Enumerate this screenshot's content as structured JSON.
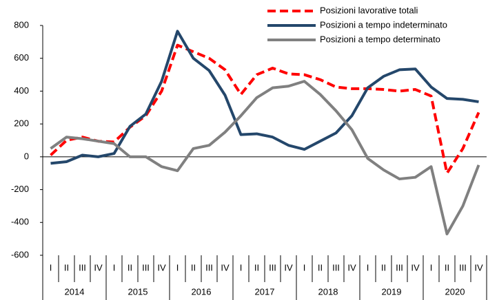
{
  "chart_data": {
    "type": "line",
    "categories": [
      "I",
      "II",
      "III",
      "IV",
      "I",
      "II",
      "III",
      "IV",
      "I",
      "II",
      "III",
      "IV",
      "I",
      "II",
      "III",
      "IV",
      "I",
      "II",
      "III",
      "IV",
      "I",
      "II",
      "III",
      "IV",
      "I",
      "II",
      "III",
      "IV"
    ],
    "years": [
      "2014",
      "2015",
      "2016",
      "2017",
      "2018",
      "2019",
      "2020"
    ],
    "series": [
      {
        "name": "Posizioni lavorative totali",
        "color": "#ff0000",
        "dashed": true,
        "values": [
          10,
          100,
          120,
          95,
          90,
          180,
          250,
          400,
          680,
          640,
          600,
          530,
          380,
          500,
          540,
          505,
          500,
          470,
          425,
          415,
          415,
          410,
          400,
          410,
          370,
          -100,
          50,
          270
        ]
      },
      {
        "name": "Posizioni a tempo indeterminato",
        "color": "#24476b",
        "dashed": false,
        "values": [
          -40,
          -30,
          10,
          0,
          20,
          185,
          260,
          460,
          765,
          600,
          525,
          375,
          135,
          140,
          120,
          70,
          45,
          95,
          145,
          250,
          420,
          490,
          530,
          535,
          425,
          355,
          350,
          335
        ]
      },
      {
        "name": "Posizioni a  tempo determinato",
        "color": "#808080",
        "dashed": false,
        "values": [
          50,
          120,
          110,
          95,
          80,
          0,
          0,
          -60,
          -85,
          50,
          70,
          150,
          250,
          360,
          420,
          430,
          460,
          380,
          280,
          165,
          -10,
          -80,
          -135,
          -125,
          -60,
          -470,
          -300,
          -50
        ]
      }
    ],
    "ylim": [
      -600,
      800
    ],
    "yticks": [
      -600,
      -400,
      -200,
      0,
      200,
      400,
      600,
      800
    ],
    "grid": false
  }
}
